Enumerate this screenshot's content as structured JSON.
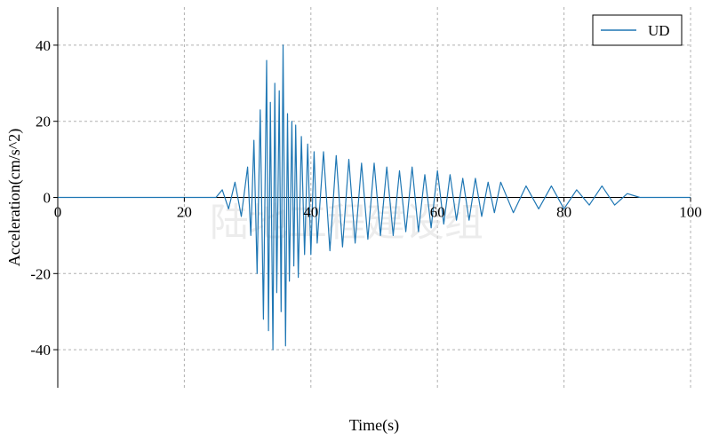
{
  "chart_data": {
    "type": "line",
    "xlabel": "Time(s)",
    "ylabel": "Acceleration(cm/s^2)",
    "xlim": [
      0,
      100
    ],
    "ylim": [
      -50,
      50
    ],
    "xticks": [
      0,
      20,
      40,
      60,
      80,
      100
    ],
    "yticks": [
      -40,
      -20,
      0,
      20,
      40
    ],
    "grid": true,
    "legend_position": "top-right",
    "watermark": "陆地工程建设组",
    "series": [
      {
        "name": "UD",
        "color": "#1f77b4",
        "x": [
          0,
          20,
          25,
          26,
          27,
          28,
          29,
          30,
          30.5,
          31,
          31.5,
          32,
          32.5,
          33,
          33.3,
          33.6,
          34,
          34.3,
          34.6,
          35,
          35.3,
          35.6,
          36,
          36.3,
          36.6,
          37,
          37.3,
          37.6,
          38,
          38.5,
          39,
          39.5,
          40,
          40.5,
          41,
          42,
          43,
          44,
          45,
          46,
          47,
          48,
          49,
          50,
          51,
          52,
          53,
          54,
          55,
          56,
          57,
          58,
          59,
          60,
          61,
          62,
          63,
          64,
          65,
          66,
          67,
          68,
          69,
          70,
          72,
          74,
          76,
          78,
          80,
          82,
          84,
          86,
          88,
          90,
          92,
          100
        ],
        "y": [
          0,
          0,
          0,
          2,
          -3,
          4,
          -5,
          8,
          -10,
          15,
          -20,
          23,
          -32,
          36,
          -35,
          25,
          -40,
          30,
          -25,
          28,
          -30,
          40,
          -39,
          22,
          -22,
          20,
          -18,
          19,
          -21,
          16,
          -15,
          14,
          -15,
          12,
          -12,
          12,
          -14,
          11,
          -13,
          10,
          -12,
          9,
          -11,
          9,
          -10,
          8,
          -10,
          7,
          -9,
          8,
          -9,
          6,
          -8,
          7,
          -7,
          6,
          -6,
          5,
          -6,
          5,
          -5,
          4,
          -4,
          4,
          -4,
          3,
          -3,
          3,
          -3,
          2,
          -2,
          3,
          -2,
          1,
          0,
          0
        ]
      }
    ]
  }
}
